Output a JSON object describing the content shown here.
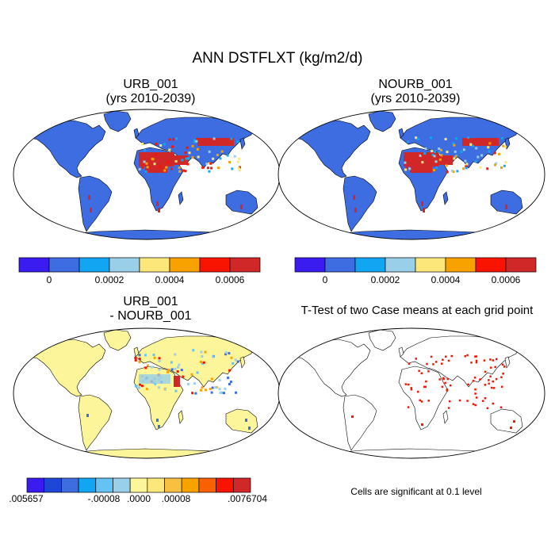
{
  "title": "ANN DSTFLXT (kg/m2/d)",
  "panels": [
    {
      "id": "urb",
      "title_line1": "URB_001",
      "title_line2": "(yrs 2010-2039)"
    },
    {
      "id": "nourb",
      "title_line1": "NOURB_001",
      "title_line2": "(yrs 2010-2039)"
    },
    {
      "id": "diff",
      "title_line1": "URB_001",
      "title_line2": "- NOURB_001"
    },
    {
      "id": "ttest",
      "title_line1": "T-Test of two Case means at each grid point",
      "title_line2": ""
    }
  ],
  "colorbar_top": {
    "colors": [
      "#3a1cf0",
      "#3d6de0",
      "#12a6f2",
      "#99cfe8",
      "#fce87a",
      "#f8a200",
      "#f81400",
      "#d02828"
    ],
    "labels": [
      "0",
      "0.0002",
      "0.0004",
      "0.0006"
    ]
  },
  "colorbar_diff": {
    "colors": [
      "#3a1cf0",
      "#1e46d8",
      "#3d6de0",
      "#12a6f2",
      "#66c2f2",
      "#99cfe8",
      "#fdf59a",
      "#fce87a",
      "#f8c040",
      "#f8a200",
      "#f86000",
      "#f81400",
      "#d02828"
    ],
    "labels": [
      ".005657",
      "-.00008",
      ".0000",
      ".00008",
      ".0076704"
    ]
  },
  "note": "Cells are significant at 0.1 level",
  "colors": {
    "land_top": "#3d6de0",
    "land_diff": "#fdf59a",
    "high": "#d02828",
    "sig": "#f81400"
  }
}
